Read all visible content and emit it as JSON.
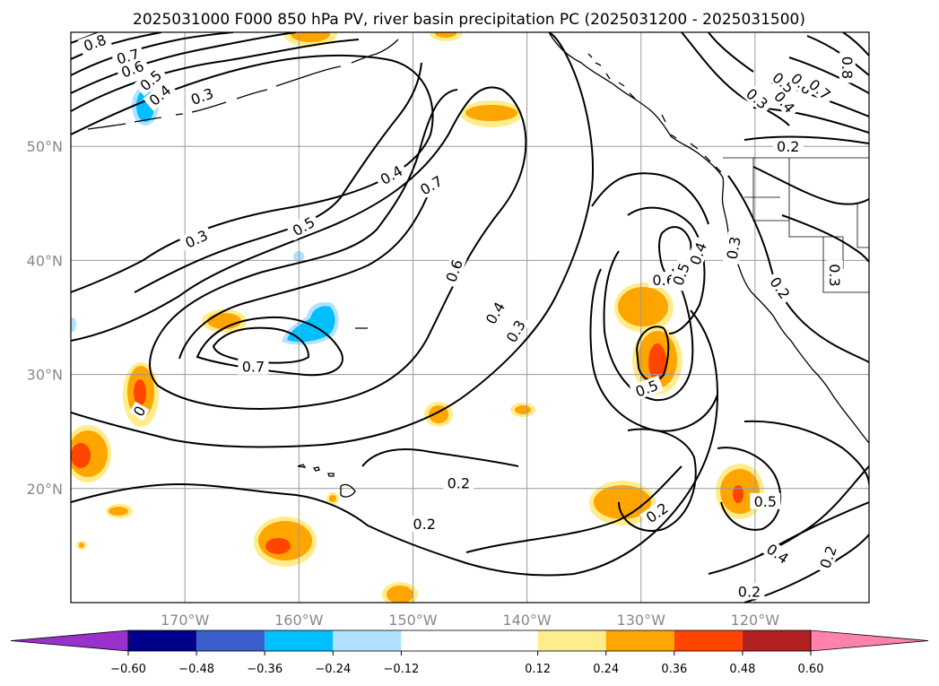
{
  "chart_data": {
    "type": "heatmap",
    "title": "2025031000 F000 850 hPa PV, river basin precipitation PC (2025031200 - 2025031500)",
    "map": {
      "lon_range": [
        -180,
        -110
      ],
      "lat_range": [
        10,
        60
      ],
      "x_ticks": [
        {
          "lon": -170,
          "label": "170°W"
        },
        {
          "lon": -160,
          "label": "160°W"
        },
        {
          "lon": -150,
          "label": "150°W"
        },
        {
          "lon": -140,
          "label": "140°W"
        },
        {
          "lon": -130,
          "label": "130°W"
        },
        {
          "lon": -120,
          "label": "120°W"
        }
      ],
      "y_ticks": [
        {
          "lat": 20,
          "label": "20°N"
        },
        {
          "lat": 30,
          "label": "30°N"
        },
        {
          "lat": 40,
          "label": "40°N"
        },
        {
          "lat": 50,
          "label": "50°N"
        }
      ],
      "grid": true
    },
    "colorbar": {
      "orientation": "horizontal",
      "extend": "both",
      "boundaries": [
        -0.72,
        -0.6,
        -0.48,
        -0.36,
        -0.24,
        -0.12,
        0.12,
        0.24,
        0.36,
        0.48,
        0.6,
        0.72
      ],
      "colors": [
        "#9932cc",
        "#9932cc",
        "#00008b",
        "#3a5fcd",
        "#00bfff",
        "#b0e2ff",
        "#ffffff",
        "#ffec8b",
        "#ffa500",
        "#ff4500",
        "#b22222",
        "#ff82ab",
        "#ff82ab"
      ],
      "tick_values": [
        -0.6,
        -0.48,
        -0.36,
        -0.24,
        -0.12,
        0.12,
        0.24,
        0.36,
        0.48,
        0.6
      ],
      "tick_labels": [
        "−0.60",
        "−0.48",
        "−0.36",
        "−0.24",
        "−0.12",
        "0.12",
        "0.24",
        "0.36",
        "0.48",
        "0.60"
      ]
    },
    "pv_contour_labels": [
      {
        "text": "0.8",
        "lon": -177.9,
        "lat": 59.1,
        "angle": -20
      },
      {
        "text": "0.7",
        "lon": -175.0,
        "lat": 57.9,
        "angle": -15
      },
      {
        "text": "0.6",
        "lon": -174.6,
        "lat": 56.8,
        "angle": -20
      },
      {
        "text": "0.5",
        "lon": -173.0,
        "lat": 55.8,
        "angle": -40
      },
      {
        "text": "0.4",
        "lon": -172.2,
        "lat": 54.5,
        "angle": -40
      },
      {
        "text": "0.3",
        "lon": -168.5,
        "lat": 54.4,
        "angle": -20
      },
      {
        "text": "0.4",
        "lon": -151.9,
        "lat": 47.5,
        "angle": -30
      },
      {
        "text": "0.7",
        "lon": -148.4,
        "lat": 46.6,
        "angle": -30
      },
      {
        "text": "0.3",
        "lon": -169.0,
        "lat": 41.9,
        "angle": -25
      },
      {
        "text": "0.5",
        "lon": -159.6,
        "lat": 43.0,
        "angle": -30
      },
      {
        "text": "0.6",
        "lon": -146.4,
        "lat": 39.1,
        "angle": -70
      },
      {
        "text": "0.4",
        "lon": -142.8,
        "lat": 35.4,
        "angle": -60
      },
      {
        "text": "0.3",
        "lon": -141.0,
        "lat": 33.8,
        "angle": -60
      },
      {
        "text": "0.7",
        "lon": -164.0,
        "lat": 30.7,
        "angle": 0
      },
      {
        "text": "0.6",
        "lon": -128.0,
        "lat": 38.3,
        "angle": 0
      },
      {
        "text": "0.5",
        "lon": -126.5,
        "lat": 38.8,
        "angle": -70
      },
      {
        "text": "0.4",
        "lon": -125.0,
        "lat": 40.6,
        "angle": -70
      },
      {
        "text": "0.3",
        "lon": -121.9,
        "lat": 41.1,
        "angle": -80
      },
      {
        "text": "0.5",
        "lon": -129.5,
        "lat": 28.8,
        "angle": -20
      },
      {
        "text": "0.3",
        "lon": -113.0,
        "lat": 38.7,
        "angle": 90
      },
      {
        "text": "0.2",
        "lon": -117.8,
        "lat": 37.6,
        "angle": 55
      },
      {
        "text": "0.2",
        "lon": -117.1,
        "lat": 50.0,
        "angle": 0
      },
      {
        "text": "0.3",
        "lon": -119.8,
        "lat": 54.2,
        "angle": 40
      },
      {
        "text": "0.4",
        "lon": -117.4,
        "lat": 53.9,
        "angle": 50
      },
      {
        "text": "0.5",
        "lon": -117.5,
        "lat": 55.6,
        "angle": 40
      },
      {
        "text": "0.6",
        "lon": -115.9,
        "lat": 55.5,
        "angle": 45
      },
      {
        "text": "0.7",
        "lon": -114.3,
        "lat": 55.0,
        "angle": 40
      },
      {
        "text": "0.8",
        "lon": -111.9,
        "lat": 56.9,
        "angle": 90
      },
      {
        "text": "0.2",
        "lon": -146.0,
        "lat": 20.5,
        "angle": 0
      },
      {
        "text": "0.2",
        "lon": -149.0,
        "lat": 16.9,
        "angle": 0
      },
      {
        "text": "0.2",
        "lon": -128.6,
        "lat": 17.9,
        "angle": -35
      },
      {
        "text": "0.5",
        "lon": -119.1,
        "lat": 18.9,
        "angle": 0
      },
      {
        "text": "0.4",
        "lon": -118.0,
        "lat": 14.3,
        "angle": 35
      },
      {
        "text": "0.2",
        "lon": -113.6,
        "lat": 14.0,
        "angle": -70
      },
      {
        "text": "0.2",
        "lon": -120.5,
        "lat": 11.0,
        "angle": 0
      },
      {
        "text": "0",
        "lon": -174.0,
        "lat": 26.8,
        "angle": -60
      }
    ]
  }
}
